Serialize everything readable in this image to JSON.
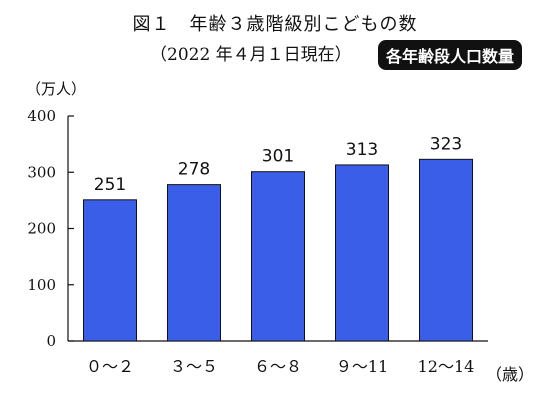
{
  "header": {
    "title": "図１　年齢３歳階級別こどもの数",
    "subtitle": "（2022 年４月１日現在）",
    "badge": "各年齢段人口数量"
  },
  "chart_data": {
    "type": "bar",
    "title": "図１　年齢３歳階級別こどもの数",
    "subtitle": "（2022 年４月１日現在）",
    "unit_label": "（万人）",
    "x_unit_label": "（歳）",
    "categories": [
      "０～２",
      "３～５",
      "６～８",
      "９～11",
      "12～14"
    ],
    "values": [
      251,
      278,
      301,
      313,
      323
    ],
    "ylim": [
      0,
      400
    ],
    "yticks": [
      0,
      100,
      200,
      300,
      400
    ],
    "bar_color": "#3a5ee8",
    "grid": false
  }
}
